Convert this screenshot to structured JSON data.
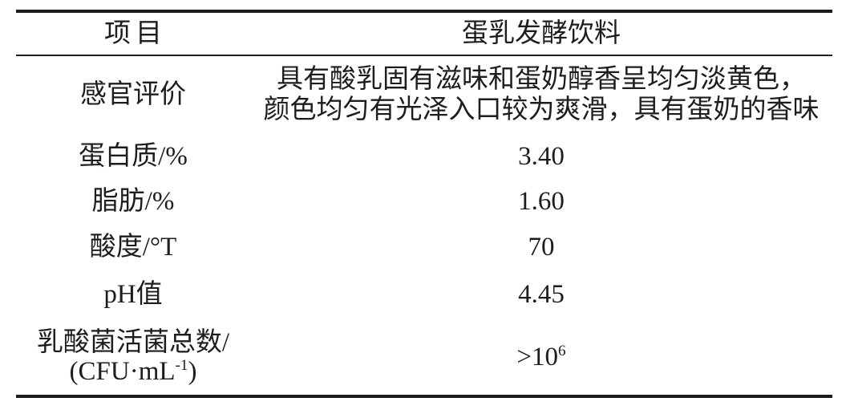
{
  "table": {
    "header": {
      "col1": "项目",
      "col2": "蛋乳发酵饮料"
    },
    "rows": [
      {
        "label_lines": [
          {
            "text": "感官评价"
          }
        ],
        "value_lines": [
          {
            "text": "具有酸乳固有滋味和蛋奶醇香呈均匀淡黄色，"
          },
          {
            "text": "颜色均匀有光泽入口较为爽滑，具有蛋奶的香味"
          }
        ]
      },
      {
        "label_lines": [
          {
            "text": "蛋白质/%"
          }
        ],
        "value_lines": [
          {
            "text": "3.40"
          }
        ]
      },
      {
        "label_lines": [
          {
            "text": "脂肪/%"
          }
        ],
        "value_lines": [
          {
            "text": "1.60"
          }
        ]
      },
      {
        "label_lines": [
          {
            "text": "酸度/°T"
          }
        ],
        "value_lines": [
          {
            "text": "70"
          }
        ]
      },
      {
        "label_lines": [
          {
            "text": "pH值"
          }
        ],
        "value_lines": [
          {
            "text": "4.45"
          }
        ]
      },
      {
        "label_lines": [
          {
            "text": "乳酸菌活菌总数/"
          },
          {
            "text": "(CFU·mL",
            "sup": "-1",
            "after": ")"
          }
        ],
        "value_lines": [
          {
            "text": ">10",
            "sup": "6"
          }
        ]
      }
    ],
    "colors": {
      "text": "#1d1d1d",
      "rule": "#1d1d1d",
      "background": "#ffffff"
    }
  }
}
